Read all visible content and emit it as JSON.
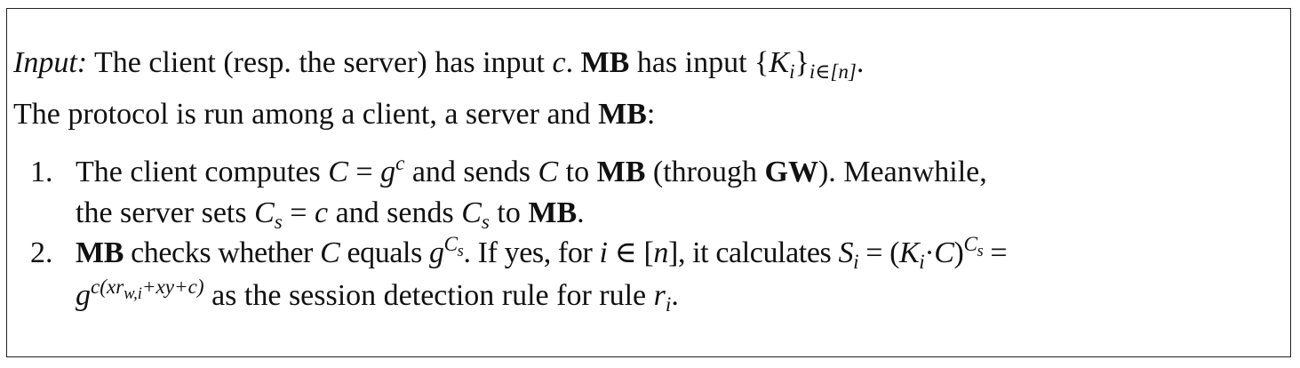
{
  "input_label": "Input:",
  "input_text": {
    "p1": " The client (resp. the server) has input ",
    "c": "c",
    "p2": ". ",
    "mb": "MB",
    "p3": " has input {",
    "K": "K",
    "i": "i",
    "rb": "}",
    "sub": "i∈[n]",
    "end": "."
  },
  "intro": {
    "p1": "The protocol is run among a client, a server and ",
    "mb": "MB",
    "end": ":"
  },
  "step1": {
    "num": "1.",
    "l1_a": "The client computes ",
    "C": "C",
    "eq": " = ",
    "g": "g",
    "sup_c": "c",
    "l1_b": " and sends ",
    "C2": "C",
    "l1_c": " to ",
    "mb": "MB",
    "l1_d": " (through ",
    "gw": "GW",
    "l1_e": "). Meanwhile,",
    "l2_a": "the server sets ",
    "Cs": "C",
    "s": "s",
    "l2_eq": " = ",
    "c": "c",
    "l2_b": " and sends ",
    "Cs2": "C",
    "s2": "s",
    "l2_c": " to ",
    "mb2": "MB",
    "l2_end": "."
  },
  "step2": {
    "num": "2.",
    "mb": "MB",
    "l1_a": " checks whether ",
    "C": "C",
    "l1_b": " equals ",
    "g": "g",
    "supC": "C",
    "sups": "s",
    "l1_c": ". If yes, for ",
    "i": "i",
    "in": " ∈ [",
    "n": "n",
    "l1_d": "], it calculates ",
    "S": "S",
    "Si": "i",
    "eq": " = (",
    "K": "K",
    "Ki": "i",
    "dot": "·",
    "C2": "C",
    "rp": ")",
    "supC2": "C",
    "sups2": "s",
    "eq2": " =",
    "g2": "g",
    "exp": "c(xr",
    "exp_sub": "w,i",
    "exp2": "+xy+c)",
    "l2_a": " as the session detection rule for rule ",
    "r": "r",
    "ri": "i",
    "l2_end": "."
  }
}
